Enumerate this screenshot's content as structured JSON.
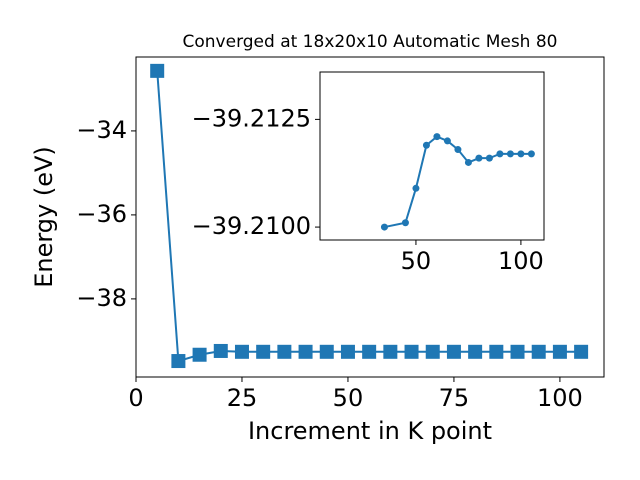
{
  "chart_data": [
    {
      "type": "line",
      "title": "Converged at 18x20x10 Automatic Mesh 80",
      "x_label": "Increment in K point",
      "y_label": "Energy (eV)",
      "x": [
        5,
        10,
        15,
        20,
        25,
        30,
        35,
        40,
        45,
        50,
        55,
        60,
        65,
        70,
        75,
        80,
        85,
        90,
        95,
        100,
        105
      ],
      "series": [
        {
          "color": "#1f77b4",
          "marker": "square",
          "values": [
            -32.57,
            -39.48,
            -39.33,
            -39.24,
            -39.26,
            -39.26,
            -39.26,
            -39.26,
            -39.26,
            -39.26,
            -39.26,
            -39.26,
            -39.26,
            -39.26,
            -39.26,
            -39.26,
            -39.26,
            -39.26,
            -39.26,
            -39.26,
            -39.26
          ]
        }
      ],
      "xlim": [
        0,
        110.4
      ],
      "ylim": [
        -39.86,
        -32.24
      ],
      "xticks": [
        0,
        25,
        50,
        75,
        100
      ],
      "yticks": [
        {
          "value": -34,
          "label": "−34"
        },
        {
          "value": -36,
          "label": "−36"
        },
        {
          "value": -38,
          "label": "−38"
        }
      ]
    },
    {
      "type": "line",
      "x": [
        35,
        45,
        50,
        55,
        60,
        65,
        70,
        75,
        80,
        85,
        90,
        95,
        100,
        105
      ],
      "series": [
        {
          "color": "#1f77b4",
          "marker": "circle",
          "values": [
            -39.21,
            -39.2101,
            -39.2109,
            -39.2119,
            -39.2121,
            -39.212,
            -39.2118,
            -39.2115,
            -39.2116,
            -39.2116,
            -39.2117,
            -39.2117,
            -39.2117,
            -39.2117
          ]
        }
      ],
      "xlim": [
        4.3,
        111
      ],
      "ylim": [
        -39.2097,
        -39.2136
      ],
      "xticks": [
        50,
        100
      ],
      "yticks": [
        {
          "value": -39.2125,
          "label": "−39.2125"
        },
        {
          "value": -39.21,
          "label": "−39.2100"
        }
      ]
    }
  ]
}
